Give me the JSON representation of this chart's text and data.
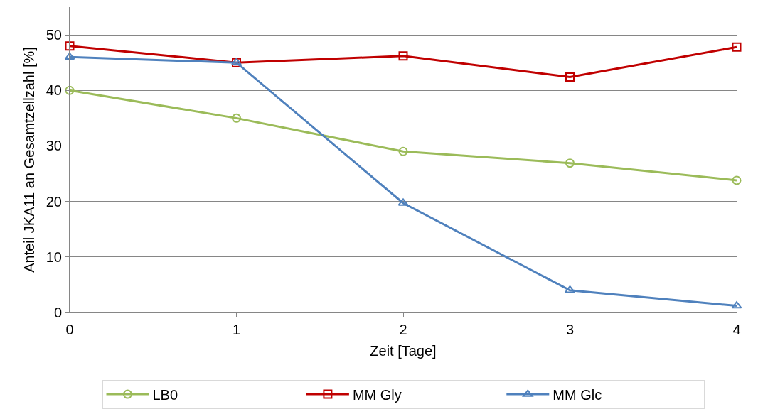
{
  "chart_data": {
    "type": "line",
    "xlabel": "Zeit [Tage]",
    "ylabel": "Anteil JKA11 an Gesamtzellzahl [%]",
    "x": [
      0,
      1,
      2,
      3,
      4
    ],
    "xlim": [
      0,
      4
    ],
    "xticks": [
      0,
      1,
      2,
      3,
      4
    ],
    "ylim": [
      0,
      55
    ],
    "yticks": [
      0,
      10,
      20,
      30,
      40,
      50
    ],
    "grid": "y",
    "legend": "bottom",
    "series": [
      {
        "name": "LB0",
        "color": "#9bbb59",
        "marker": "circle",
        "values": [
          40,
          35,
          29,
          26.9,
          23.8
        ]
      },
      {
        "name": "MM Gly",
        "color": "#c00000",
        "marker": "square",
        "values": [
          48,
          45,
          46.2,
          42.4,
          47.8
        ]
      },
      {
        "name": "MM Glc",
        "color": "#4f81bd",
        "marker": "triangle",
        "values": [
          46,
          45,
          19.7,
          4,
          1.2
        ]
      }
    ]
  }
}
